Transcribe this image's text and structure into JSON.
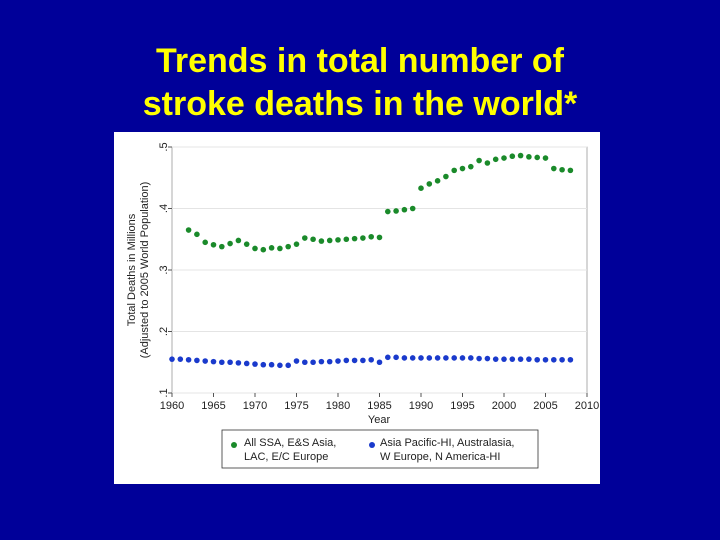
{
  "slide": {
    "title_line1": "Trends in total number of",
    "title_line2": "stroke deaths in the world*"
  },
  "chart_data": {
    "type": "scatter",
    "xlabel": "Year",
    "ylabel_line1": "Total Deaths in Millions",
    "ylabel_line2": "(Adjusted to 2005 World Population)",
    "xlim": [
      1960,
      2010
    ],
    "ylim": [
      0.1,
      0.5
    ],
    "x_ticks": [
      1960,
      1965,
      1970,
      1975,
      1980,
      1985,
      1990,
      1995,
      2000,
      2005,
      2010
    ],
    "y_ticks": [
      0.1,
      0.2,
      0.3,
      0.4,
      0.5
    ],
    "y_tick_labels": [
      ".1",
      ".2",
      ".3",
      ".4",
      ".5"
    ],
    "grid": true,
    "legend_position": "bottom",
    "series": [
      {
        "name": "All SSA, E&S Asia, LAC, E/C Europe",
        "legend_line1": "All SSA, E&S Asia,",
        "legend_line2": "LAC, E/C Europe",
        "color": "#1a8a2a",
        "x": [
          1962,
          1963,
          1964,
          1965,
          1966,
          1967,
          1968,
          1969,
          1970,
          1971,
          1972,
          1973,
          1974,
          1975,
          1976,
          1977,
          1978,
          1979,
          1980,
          1981,
          1982,
          1983,
          1984,
          1985,
          1986,
          1987,
          1988,
          1989,
          1990,
          1991,
          1992,
          1993,
          1994,
          1995,
          1996,
          1997,
          1998,
          1999,
          2000,
          2001,
          2002,
          2003,
          2004,
          2005,
          2006,
          2007,
          2008
        ],
        "y": [
          0.365,
          0.358,
          0.345,
          0.341,
          0.338,
          0.343,
          0.348,
          0.342,
          0.335,
          0.333,
          0.336,
          0.335,
          0.338,
          0.342,
          0.352,
          0.35,
          0.347,
          0.348,
          0.349,
          0.35,
          0.351,
          0.352,
          0.354,
          0.353,
          0.395,
          0.396,
          0.398,
          0.4,
          0.433,
          0.44,
          0.445,
          0.452,
          0.462,
          0.465,
          0.468,
          0.478,
          0.474,
          0.48,
          0.482,
          0.485,
          0.486,
          0.484,
          0.483,
          0.482,
          0.465,
          0.463,
          0.462
        ]
      },
      {
        "name": "Asia Pacific-HI, Australasia, W Europe, N America-HI",
        "legend_line1": "Asia Pacific-HI, Australasia,",
        "legend_line2": "W Europe, N America-HI",
        "color": "#1a3acc",
        "x": [
          1960,
          1961,
          1962,
          1963,
          1964,
          1965,
          1966,
          1967,
          1968,
          1969,
          1970,
          1971,
          1972,
          1973,
          1974,
          1975,
          1976,
          1977,
          1978,
          1979,
          1980,
          1981,
          1982,
          1983,
          1984,
          1985,
          1986,
          1987,
          1988,
          1989,
          1990,
          1991,
          1992,
          1993,
          1994,
          1995,
          1996,
          1997,
          1998,
          1999,
          2000,
          2001,
          2002,
          2003,
          2004,
          2005,
          2006,
          2007,
          2008
        ],
        "y": [
          0.155,
          0.155,
          0.154,
          0.153,
          0.152,
          0.151,
          0.15,
          0.15,
          0.149,
          0.148,
          0.147,
          0.146,
          0.146,
          0.145,
          0.145,
          0.152,
          0.15,
          0.15,
          0.151,
          0.151,
          0.152,
          0.153,
          0.153,
          0.153,
          0.154,
          0.15,
          0.158,
          0.158,
          0.157,
          0.157,
          0.157,
          0.157,
          0.157,
          0.157,
          0.157,
          0.157,
          0.157,
          0.156,
          0.156,
          0.155,
          0.155,
          0.155,
          0.155,
          0.155,
          0.154,
          0.154,
          0.154,
          0.154,
          0.154
        ]
      }
    ]
  }
}
